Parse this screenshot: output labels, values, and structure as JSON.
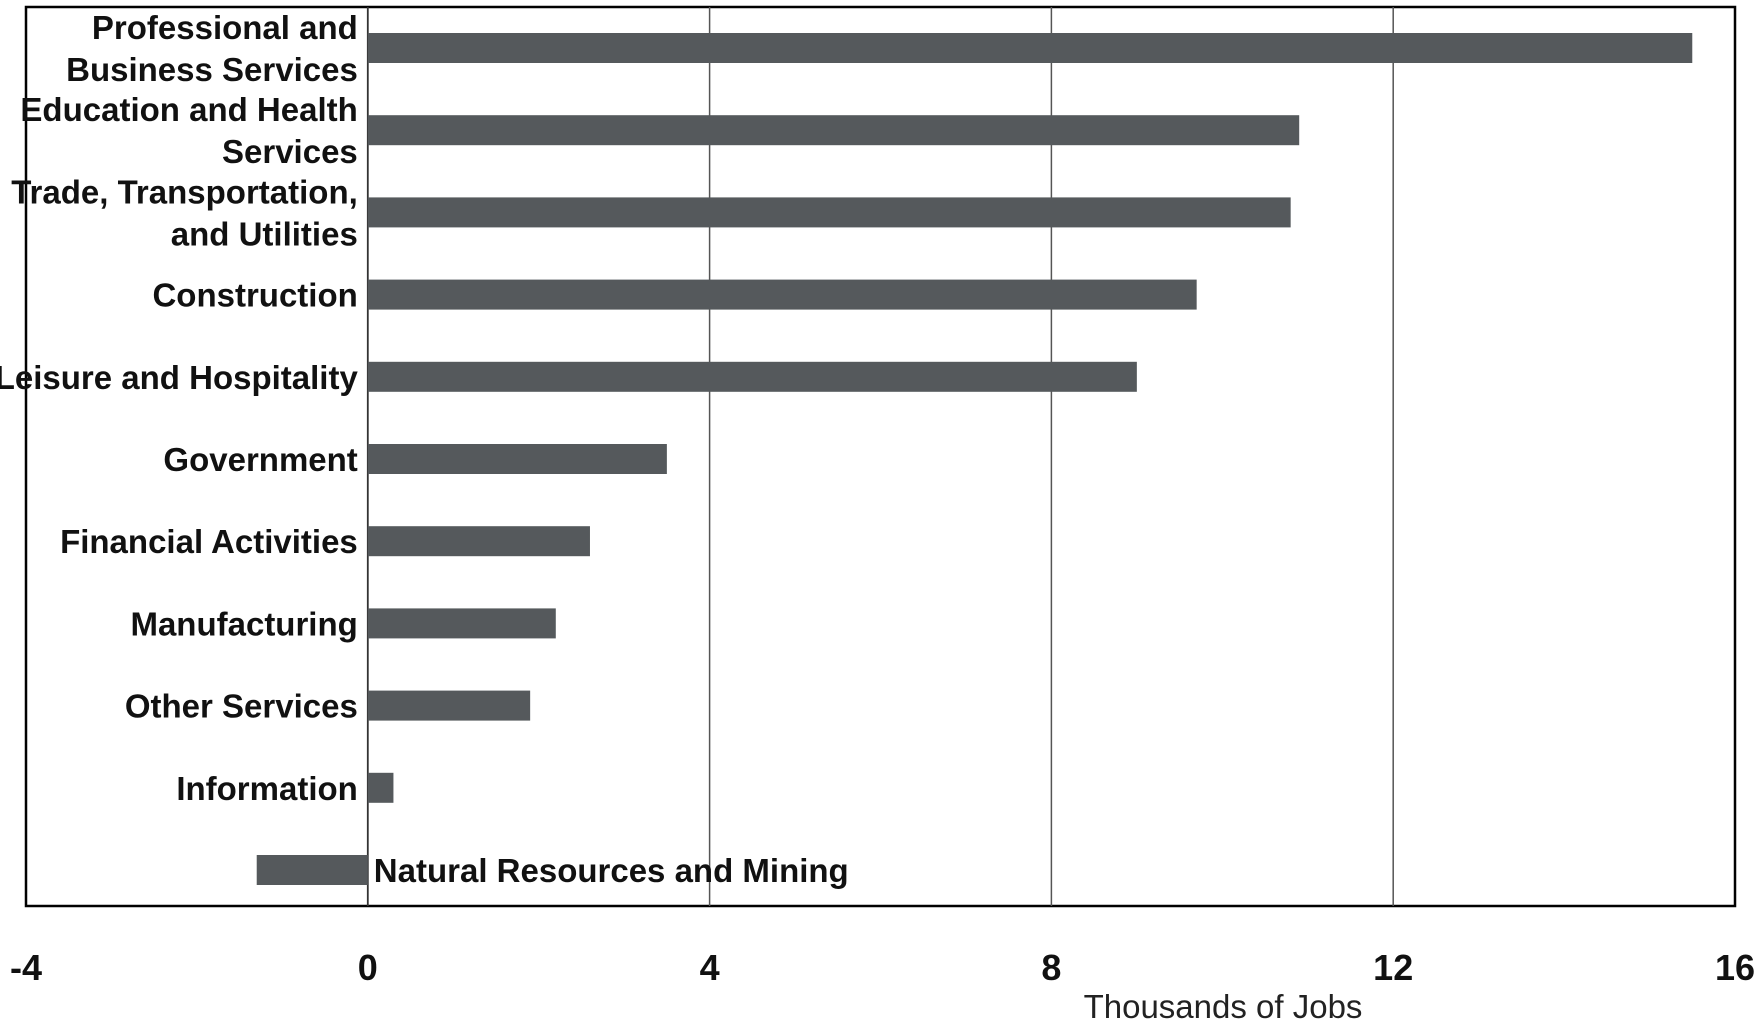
{
  "chart_data": {
    "type": "bar",
    "orientation": "horizontal",
    "categories": [
      "Professional and Business Services",
      "Education and Health Services",
      "Trade, Transportation, and Utilities",
      "Construction",
      "Leisure and Hospitality",
      "Government",
      "Financial Activities",
      "Manufacturing",
      "Other Services",
      "Information",
      "Natural Resources and Mining"
    ],
    "category_label_lines": [
      [
        "Professional and",
        "Business Services"
      ],
      [
        "Education and Health",
        "Services"
      ],
      [
        "Trade, Transportation,",
        "and Utilities"
      ],
      [
        "Construction"
      ],
      [
        "Leisure and Hospitality"
      ],
      [
        "Government"
      ],
      [
        "Financial Activities"
      ],
      [
        "Manufacturing"
      ],
      [
        "Other Services"
      ],
      [
        "Information"
      ],
      [
        "Natural Resources and Mining"
      ]
    ],
    "values": [
      15.5,
      10.9,
      10.8,
      9.7,
      9.0,
      3.5,
      2.6,
      2.2,
      1.9,
      0.3,
      -1.3
    ],
    "xlabel": "Thousands of Jobs",
    "xlim": [
      -4,
      16
    ],
    "xticks": [
      "-4",
      "0",
      "4",
      "8",
      "12",
      "16"
    ],
    "grid": true,
    "bar_color": "#55595c"
  }
}
